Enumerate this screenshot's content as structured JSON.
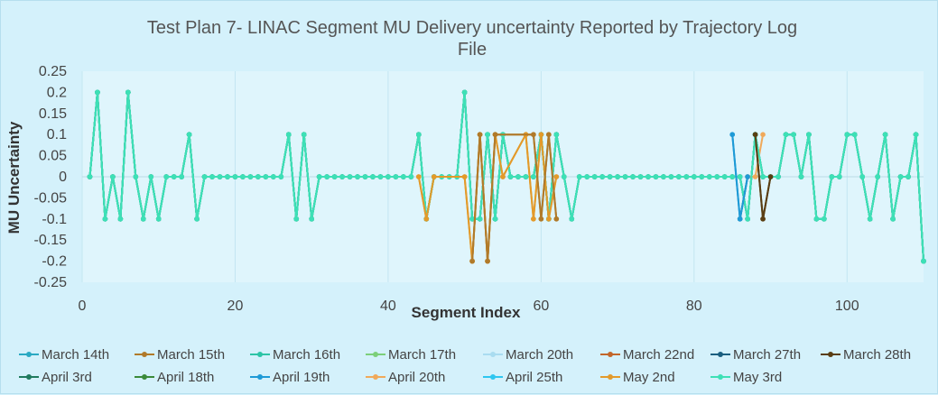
{
  "chart_data": {
    "type": "line",
    "title_line1": "Test Plan 7- LINAC Segment MU Delivery uncertainty  Reported by Trajectory Log",
    "title_line2": "File",
    "xlabel": "Segment Index",
    "ylabel": "MU Uncertainty",
    "xlim": [
      0,
      110
    ],
    "ylim": [
      -0.25,
      0.25
    ],
    "x_ticks": [
      "0",
      "20",
      "40",
      "60",
      "80",
      "100"
    ],
    "x_tick_values": [
      0,
      20,
      40,
      60,
      80,
      100
    ],
    "y_ticks": [
      "0.25",
      "0.2",
      "0.15",
      "0.1",
      "0.05",
      "0",
      "-0.05",
      "-0.1",
      "-0.15",
      "-0.2",
      "-0.25"
    ],
    "y_tick_values": [
      0.25,
      0.2,
      0.15,
      0.1,
      0.05,
      0,
      -0.05,
      -0.1,
      -0.15,
      -0.2,
      -0.25
    ],
    "grid": "vertical",
    "legend_position": "bottom",
    "base_series": [
      0,
      0.2,
      -0.1,
      0,
      -0.1,
      0.2,
      0,
      -0.1,
      0,
      -0.1,
      0,
      0,
      0,
      0.1,
      -0.1,
      0,
      0,
      0,
      0,
      0,
      0,
      0,
      0,
      0,
      0,
      0,
      0.1,
      -0.1,
      0.1,
      -0.1,
      0,
      0,
      0,
      0,
      0,
      0,
      0,
      0,
      0,
      0,
      0,
      0,
      0,
      0.1,
      -0.1,
      0,
      0,
      0,
      0,
      0.2,
      -0.1,
      -0.1,
      0.1,
      -0.1,
      0.1,
      0,
      0,
      0,
      0,
      0.1,
      -0.1,
      0.1,
      0,
      -0.1,
      0,
      0,
      0,
      0,
      0,
      0,
      0,
      0,
      0,
      0,
      0,
      0,
      0,
      0,
      0,
      0,
      0,
      0,
      0,
      0,
      0,
      0,
      -0.1,
      0.1,
      0,
      0,
      0,
      0.1,
      0.1,
      0,
      0.1,
      -0.1,
      -0.1,
      0,
      0,
      0.1,
      0.1,
      0,
      -0.1,
      0,
      0.1,
      -0.1,
      0,
      0,
      0.1,
      -0.2
    ],
    "series": [
      {
        "name": "March 14th",
        "color": "#2aa9c2"
      },
      {
        "name": "March 15th",
        "color": "#b07a2a"
      },
      {
        "name": "March 16th",
        "color": "#2cc4a6"
      },
      {
        "name": "March 17th",
        "color": "#7ccf7a"
      },
      {
        "name": "March 20th",
        "color": "#a9dcf0"
      },
      {
        "name": "March 22nd",
        "color": "#c2662a"
      },
      {
        "name": "March 27th",
        "color": "#1a5f80"
      },
      {
        "name": "March 28th",
        "color": "#5a3e12"
      },
      {
        "name": "April 3rd",
        "color": "#1f7a5e"
      },
      {
        "name": "April 18th",
        "color": "#3a8a3a"
      },
      {
        "name": "April 19th",
        "color": "#1e9ad6"
      },
      {
        "name": "April 20th",
        "color": "#f0a95a"
      },
      {
        "name": "April 25th",
        "color": "#2ec6f0"
      },
      {
        "name": "May 2nd",
        "color": "#e39a2a"
      },
      {
        "name": "May 3rd",
        "color": "#3de0b6"
      }
    ],
    "overrides": [
      {
        "series": "May 2nd",
        "points": [
          [
            44,
            0
          ],
          [
            45,
            -0.1
          ],
          [
            46,
            0
          ],
          [
            50,
            0
          ],
          [
            51,
            -0.2
          ],
          [
            52,
            0.1
          ],
          [
            53,
            -0.2
          ],
          [
            54,
            0.1
          ],
          [
            55,
            0
          ],
          [
            58,
            0.1
          ],
          [
            59,
            -0.1
          ],
          [
            60,
            0.1
          ],
          [
            61,
            -0.1
          ],
          [
            62,
            0
          ]
        ]
      },
      {
        "series": "March 15th",
        "points": [
          [
            51,
            -0.2
          ],
          [
            52,
            0.1
          ],
          [
            53,
            -0.2
          ],
          [
            54,
            0.1
          ],
          [
            59,
            0.1
          ],
          [
            60,
            -0.1
          ],
          [
            61,
            0.1
          ],
          [
            62,
            -0.1
          ]
        ]
      },
      {
        "series": "April 19th",
        "points": [
          [
            85,
            0.1
          ],
          [
            86,
            -0.1
          ],
          [
            87,
            0
          ]
        ]
      },
      {
        "series": "March 27th",
        "points": [
          [
            86,
            -0.1
          ],
          [
            87,
            0
          ]
        ]
      },
      {
        "series": "March 28th",
        "points": [
          [
            88,
            0.1
          ],
          [
            89,
            -0.1
          ],
          [
            90,
            0
          ]
        ]
      },
      {
        "series": "April 20th",
        "points": [
          [
            87,
            0
          ],
          [
            88,
            0
          ],
          [
            89,
            0.1
          ]
        ]
      }
    ]
  }
}
